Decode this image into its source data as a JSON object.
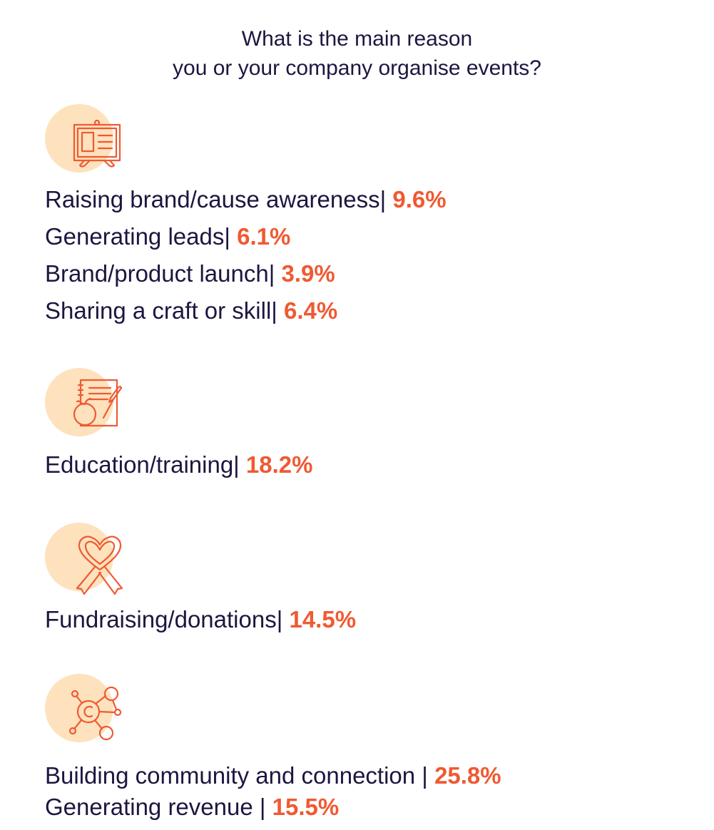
{
  "title": {
    "line1": "What is the main reason",
    "line2": "you or your company organise events?"
  },
  "colors": {
    "text": "#1d1640",
    "accent": "#ef5a32",
    "icon_bg": "#fde2bd"
  },
  "groups": [
    {
      "icon": "presentation-board-icon",
      "items": [
        {
          "label": "Raising brand/cause awareness|",
          "value": "9.6%"
        },
        {
          "label": "Generating leads|",
          "value": "6.1%"
        },
        {
          "label": "Brand/product launch|",
          "value": "3.9%"
        },
        {
          "label": "Sharing a craft or skill|",
          "value": "6.4%"
        }
      ]
    },
    {
      "icon": "notebook-apple-pencil-icon",
      "items": [
        {
          "label": "Education/training|",
          "value": "18.2%"
        }
      ]
    },
    {
      "icon": "heart-ribbon-icon",
      "items": [
        {
          "label": "Fundraising/donations|",
          "value": "14.5%"
        }
      ]
    },
    {
      "icon": "network-coin-icon",
      "items": [
        {
          "label": "Building community and connection |",
          "value": "25.8%"
        },
        {
          "label": "Generating revenue |",
          "value": "15.5%"
        }
      ]
    }
  ]
}
